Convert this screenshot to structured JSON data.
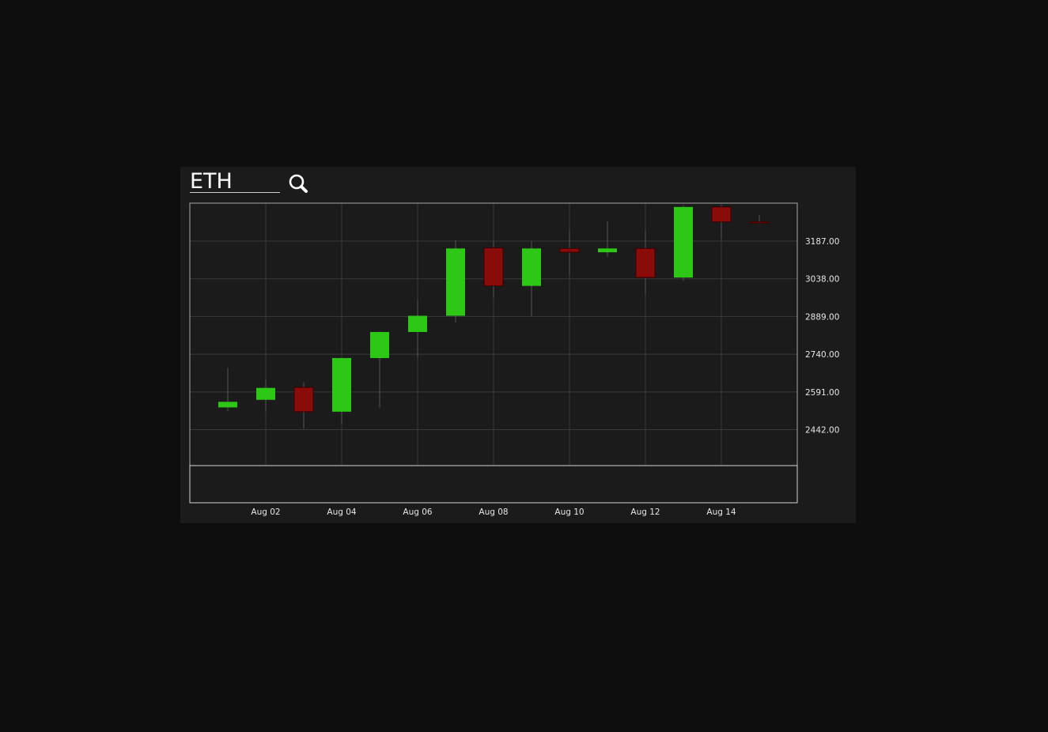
{
  "search": {
    "value": "ETH",
    "icon": "search-icon"
  },
  "colors": {
    "background": "#0e0e0e",
    "panel": "#1b1b1b",
    "grid": "#3a3a3a",
    "up": "#2dc716",
    "down": "#8b0b0b",
    "text": "#e6e6e6"
  },
  "chart_data": {
    "type": "candlestick",
    "title": "",
    "xlabel": "",
    "ylabel": "",
    "y_axis_position": "right",
    "grid": true,
    "ylim": [
      2300,
      3337
    ],
    "xlim": [
      "2022-07-31",
      "2022-08-16"
    ],
    "y_ticks": [
      "3187.00",
      "3038.00",
      "2889.00",
      "2740.00",
      "2591.00",
      "2442.00"
    ],
    "x_ticks": [
      {
        "date": "2022-08-02",
        "label": "Aug 02"
      },
      {
        "date": "2022-08-04",
        "label": "Aug 04"
      },
      {
        "date": "2022-08-06",
        "label": "Aug 06"
      },
      {
        "date": "2022-08-08",
        "label": "Aug 08"
      },
      {
        "date": "2022-08-10",
        "label": "Aug 10"
      },
      {
        "date": "2022-08-12",
        "label": "Aug 12"
      },
      {
        "date": "2022-08-14",
        "label": "Aug 14"
      }
    ],
    "candles": [
      {
        "date": "2022-08-01",
        "open": 2530,
        "high": 2685,
        "low": 2515,
        "close": 2552
      },
      {
        "date": "2022-08-02",
        "open": 2560,
        "high": 2640,
        "low": 2515,
        "close": 2607
      },
      {
        "date": "2022-08-03",
        "open": 2609,
        "high": 2630,
        "low": 2447,
        "close": 2513
      },
      {
        "date": "2022-08-04",
        "open": 2513,
        "high": 2720,
        "low": 2467,
        "close": 2725
      },
      {
        "date": "2022-08-05",
        "open": 2725,
        "high": 2830,
        "low": 2530,
        "close": 2828
      },
      {
        "date": "2022-08-06",
        "open": 2828,
        "high": 2950,
        "low": 2730,
        "close": 2892
      },
      {
        "date": "2022-08-07",
        "open": 2892,
        "high": 3190,
        "low": 2865,
        "close": 3158
      },
      {
        "date": "2022-08-08",
        "open": 3160,
        "high": 3185,
        "low": 2965,
        "close": 3010
      },
      {
        "date": "2022-08-09",
        "open": 3010,
        "high": 3185,
        "low": 2890,
        "close": 3158
      },
      {
        "date": "2022-08-10",
        "open": 3158,
        "high": 3230,
        "low": 3055,
        "close": 3143
      },
      {
        "date": "2022-08-11",
        "open": 3143,
        "high": 3265,
        "low": 3125,
        "close": 3158
      },
      {
        "date": "2022-08-12",
        "open": 3158,
        "high": 3225,
        "low": 2980,
        "close": 3043
      },
      {
        "date": "2022-08-13",
        "open": 3043,
        "high": 3330,
        "low": 3030,
        "close": 3322
      },
      {
        "date": "2022-08-14",
        "open": 3322,
        "high": 3330,
        "low": 3195,
        "close": 3263
      },
      {
        "date": "2022-08-15",
        "open": 3263,
        "high": 3290,
        "low": 3255,
        "close": 3260
      }
    ]
  }
}
